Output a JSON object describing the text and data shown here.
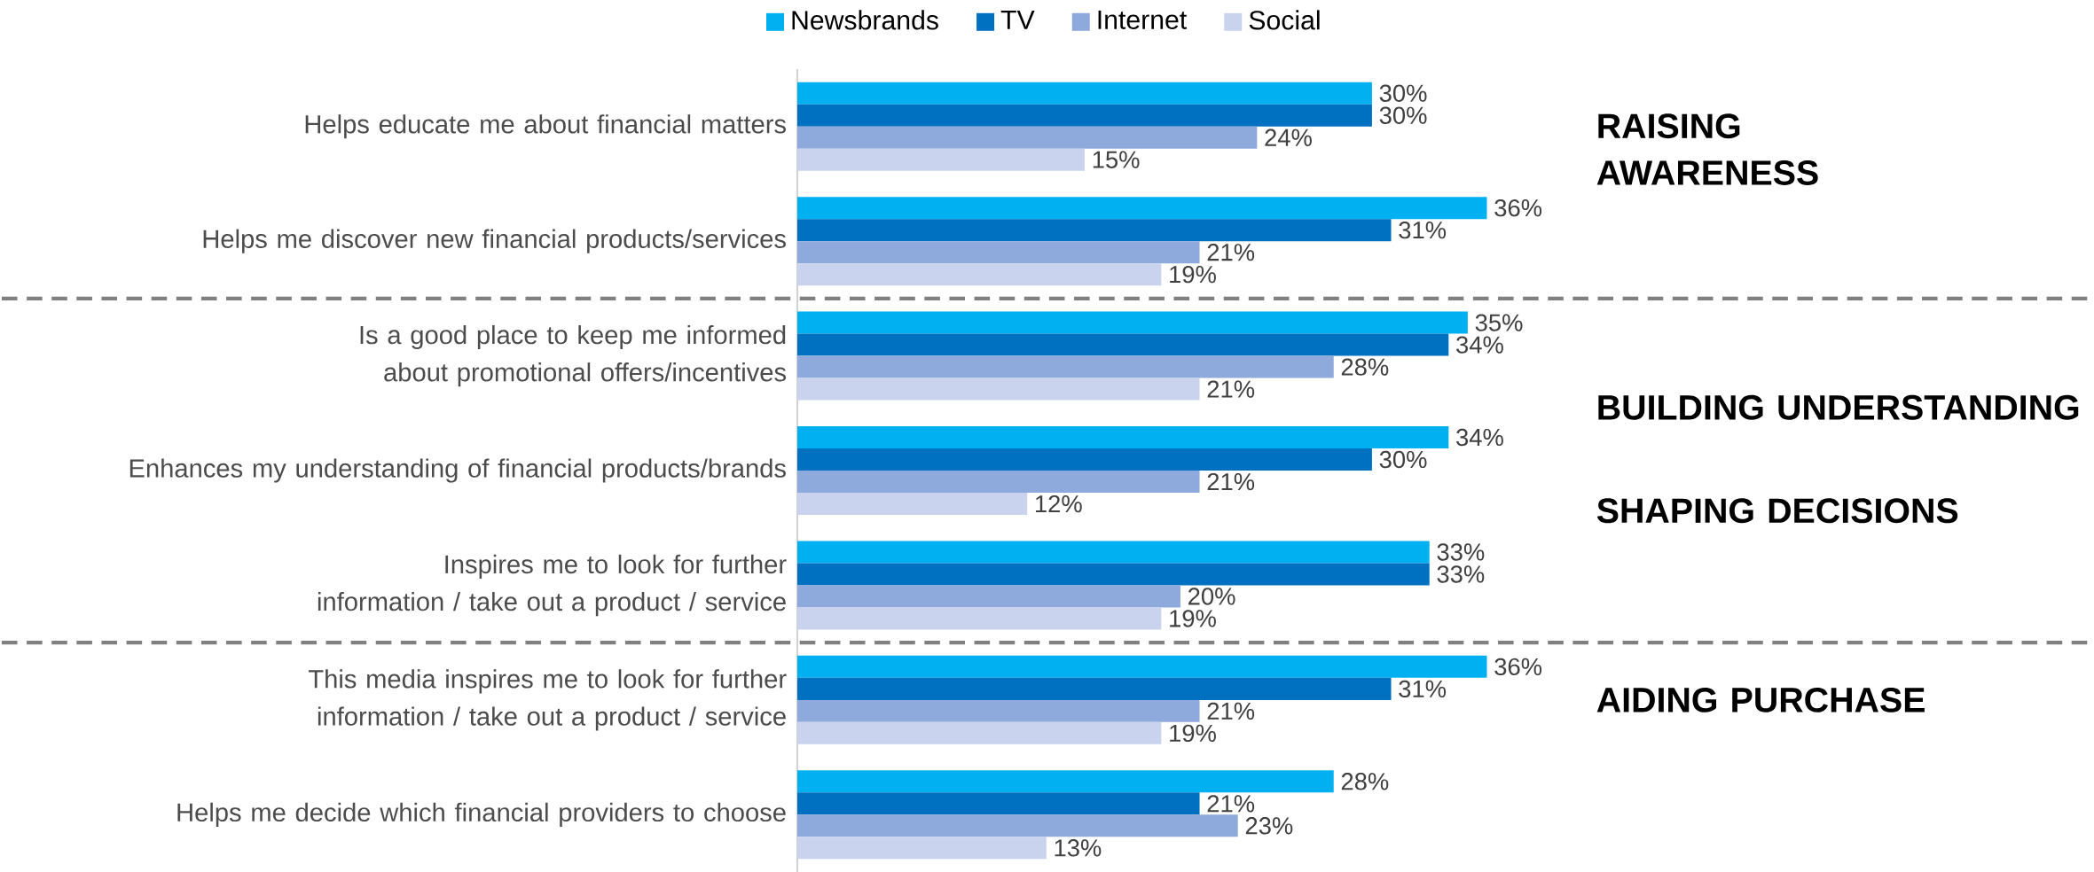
{
  "chart_data": {
    "type": "bar",
    "orientation": "horizontal",
    "legend": "top",
    "categories": [
      "Helps educate me about financial matters",
      "Helps me discover new financial products/services",
      "Is a good place to keep me informed about promotional offers/incentives",
      "Enhances my understanding of financial products/brands",
      "Inspires me to look for further information / take out a product / service",
      "This media inspires me to look for further information / take out a product / service",
      "Helps me decide which financial providers to choose"
    ],
    "series": [
      {
        "name": "Newsbrands",
        "color": "#00b0f0",
        "values": [
          30,
          36,
          35,
          34,
          33,
          36,
          28
        ],
        "value_labels": [
          "30%",
          "36%",
          "35%",
          "34%",
          "33%",
          "36%",
          "28%"
        ]
      },
      {
        "name": "TV",
        "color": "#0070c0",
        "values": [
          30,
          31,
          34,
          30,
          33,
          31,
          21
        ],
        "value_labels": [
          "30%",
          "31%",
          "34%",
          "30%",
          "33%",
          "31%",
          "21%"
        ]
      },
      {
        "name": "Internet",
        "color": "#8ea9db",
        "values": [
          24,
          21,
          28,
          21,
          20,
          21,
          23
        ],
        "value_labels": [
          "24%",
          "21%",
          "28%",
          "21%",
          "20%",
          "21%",
          "23%"
        ]
      },
      {
        "name": "Social",
        "color": "#c9d3ee",
        "values": [
          15,
          19,
          21,
          12,
          19,
          19,
          13
        ],
        "value_labels": [
          "15%",
          "19%",
          "21%",
          "12%",
          "19%",
          "19%",
          "13%"
        ]
      }
    ],
    "annotations": [
      "RAISING AWARENESS",
      "BUILDING UNDERSTANDING",
      "SHAPING DECISIONS",
      "AIDING PURCHASE"
    ]
  }
}
